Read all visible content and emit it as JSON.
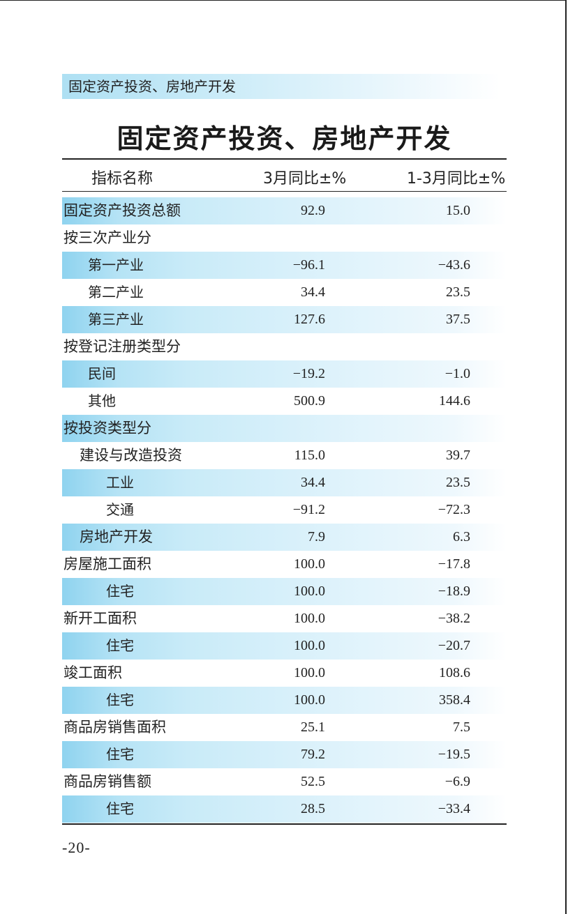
{
  "section_tag": "固定资产投资、房地产开发",
  "title": "固定资产投资、房地产开发",
  "headers": {
    "name": "指标名称",
    "m3": "3月同比±%",
    "q1": "1-3月同比±%"
  },
  "rows": [
    {
      "label": "固定资产投资总额",
      "m3": "92.9",
      "q1": "15.0",
      "shaded": true,
      "indent": 0,
      "style": "sans"
    },
    {
      "label": "按三次产业分",
      "m3": "",
      "q1": "",
      "shaded": false,
      "indent": 0,
      "style": "sans"
    },
    {
      "label": "第一产业",
      "m3": "−96.1",
      "q1": "−43.6",
      "shaded": true,
      "indent": 1,
      "style": "serif"
    },
    {
      "label": "第二产业",
      "m3": "34.4",
      "q1": "23.5",
      "shaded": false,
      "indent": 1,
      "style": "serif"
    },
    {
      "label": "第三产业",
      "m3": "127.6",
      "q1": "37.5",
      "shaded": true,
      "indent": 1,
      "style": "serif"
    },
    {
      "label": "按登记注册类型分",
      "m3": "",
      "q1": "",
      "shaded": false,
      "indent": 0,
      "style": "sans"
    },
    {
      "label": "民间",
      "m3": "−19.2",
      "q1": "−1.0",
      "shaded": true,
      "indent": 1,
      "style": "serif"
    },
    {
      "label": "其他",
      "m3": "500.9",
      "q1": "144.6",
      "shaded": false,
      "indent": 1,
      "style": "serif"
    },
    {
      "label": "按投资类型分",
      "m3": "",
      "q1": "",
      "shaded": true,
      "indent": 0,
      "style": "sans"
    },
    {
      "label": "建设与改造投资",
      "m3": "115.0",
      "q1": "39.7",
      "shaded": false,
      "indent": 2,
      "style": "sans"
    },
    {
      "label": "工业",
      "m3": "34.4",
      "q1": "23.5",
      "shaded": true,
      "indent": 3,
      "style": "serif"
    },
    {
      "label": "交通",
      "m3": "−91.2",
      "q1": "−72.3",
      "shaded": false,
      "indent": 3,
      "style": "serif"
    },
    {
      "label": "房地产开发",
      "m3": "7.9",
      "q1": "6.3",
      "shaded": true,
      "indent": 2,
      "style": "sans"
    },
    {
      "label": "房屋施工面积",
      "m3": "100.0",
      "q1": "−17.8",
      "shaded": false,
      "indent": 0,
      "style": "sans"
    },
    {
      "label": "住宅",
      "m3": "100.0",
      "q1": "−18.9",
      "shaded": true,
      "indent": 3,
      "style": "serif"
    },
    {
      "label": "新开工面积",
      "m3": "100.0",
      "q1": "−38.2",
      "shaded": false,
      "indent": 0,
      "style": "sans"
    },
    {
      "label": "住宅",
      "m3": "100.0",
      "q1": "−20.7",
      "shaded": true,
      "indent": 3,
      "style": "serif"
    },
    {
      "label": "竣工面积",
      "m3": "100.0",
      "q1": "108.6",
      "shaded": false,
      "indent": 0,
      "style": "sans"
    },
    {
      "label": "住宅",
      "m3": "100.0",
      "q1": "358.4",
      "shaded": true,
      "indent": 3,
      "style": "serif"
    },
    {
      "label": "商品房销售面积",
      "m3": "25.1",
      "q1": "7.5",
      "shaded": false,
      "indent": 0,
      "style": "sans"
    },
    {
      "label": "住宅",
      "m3": "79.2",
      "q1": "−19.5",
      "shaded": true,
      "indent": 3,
      "style": "serif"
    },
    {
      "label": "商品房销售额",
      "m3": "52.5",
      "q1": "−6.9",
      "shaded": false,
      "indent": 0,
      "style": "sans"
    },
    {
      "label": "住宅",
      "m3": "28.5",
      "q1": "−33.4",
      "shaded": true,
      "indent": 3,
      "style": "serif"
    }
  ],
  "page_number": "-20-"
}
